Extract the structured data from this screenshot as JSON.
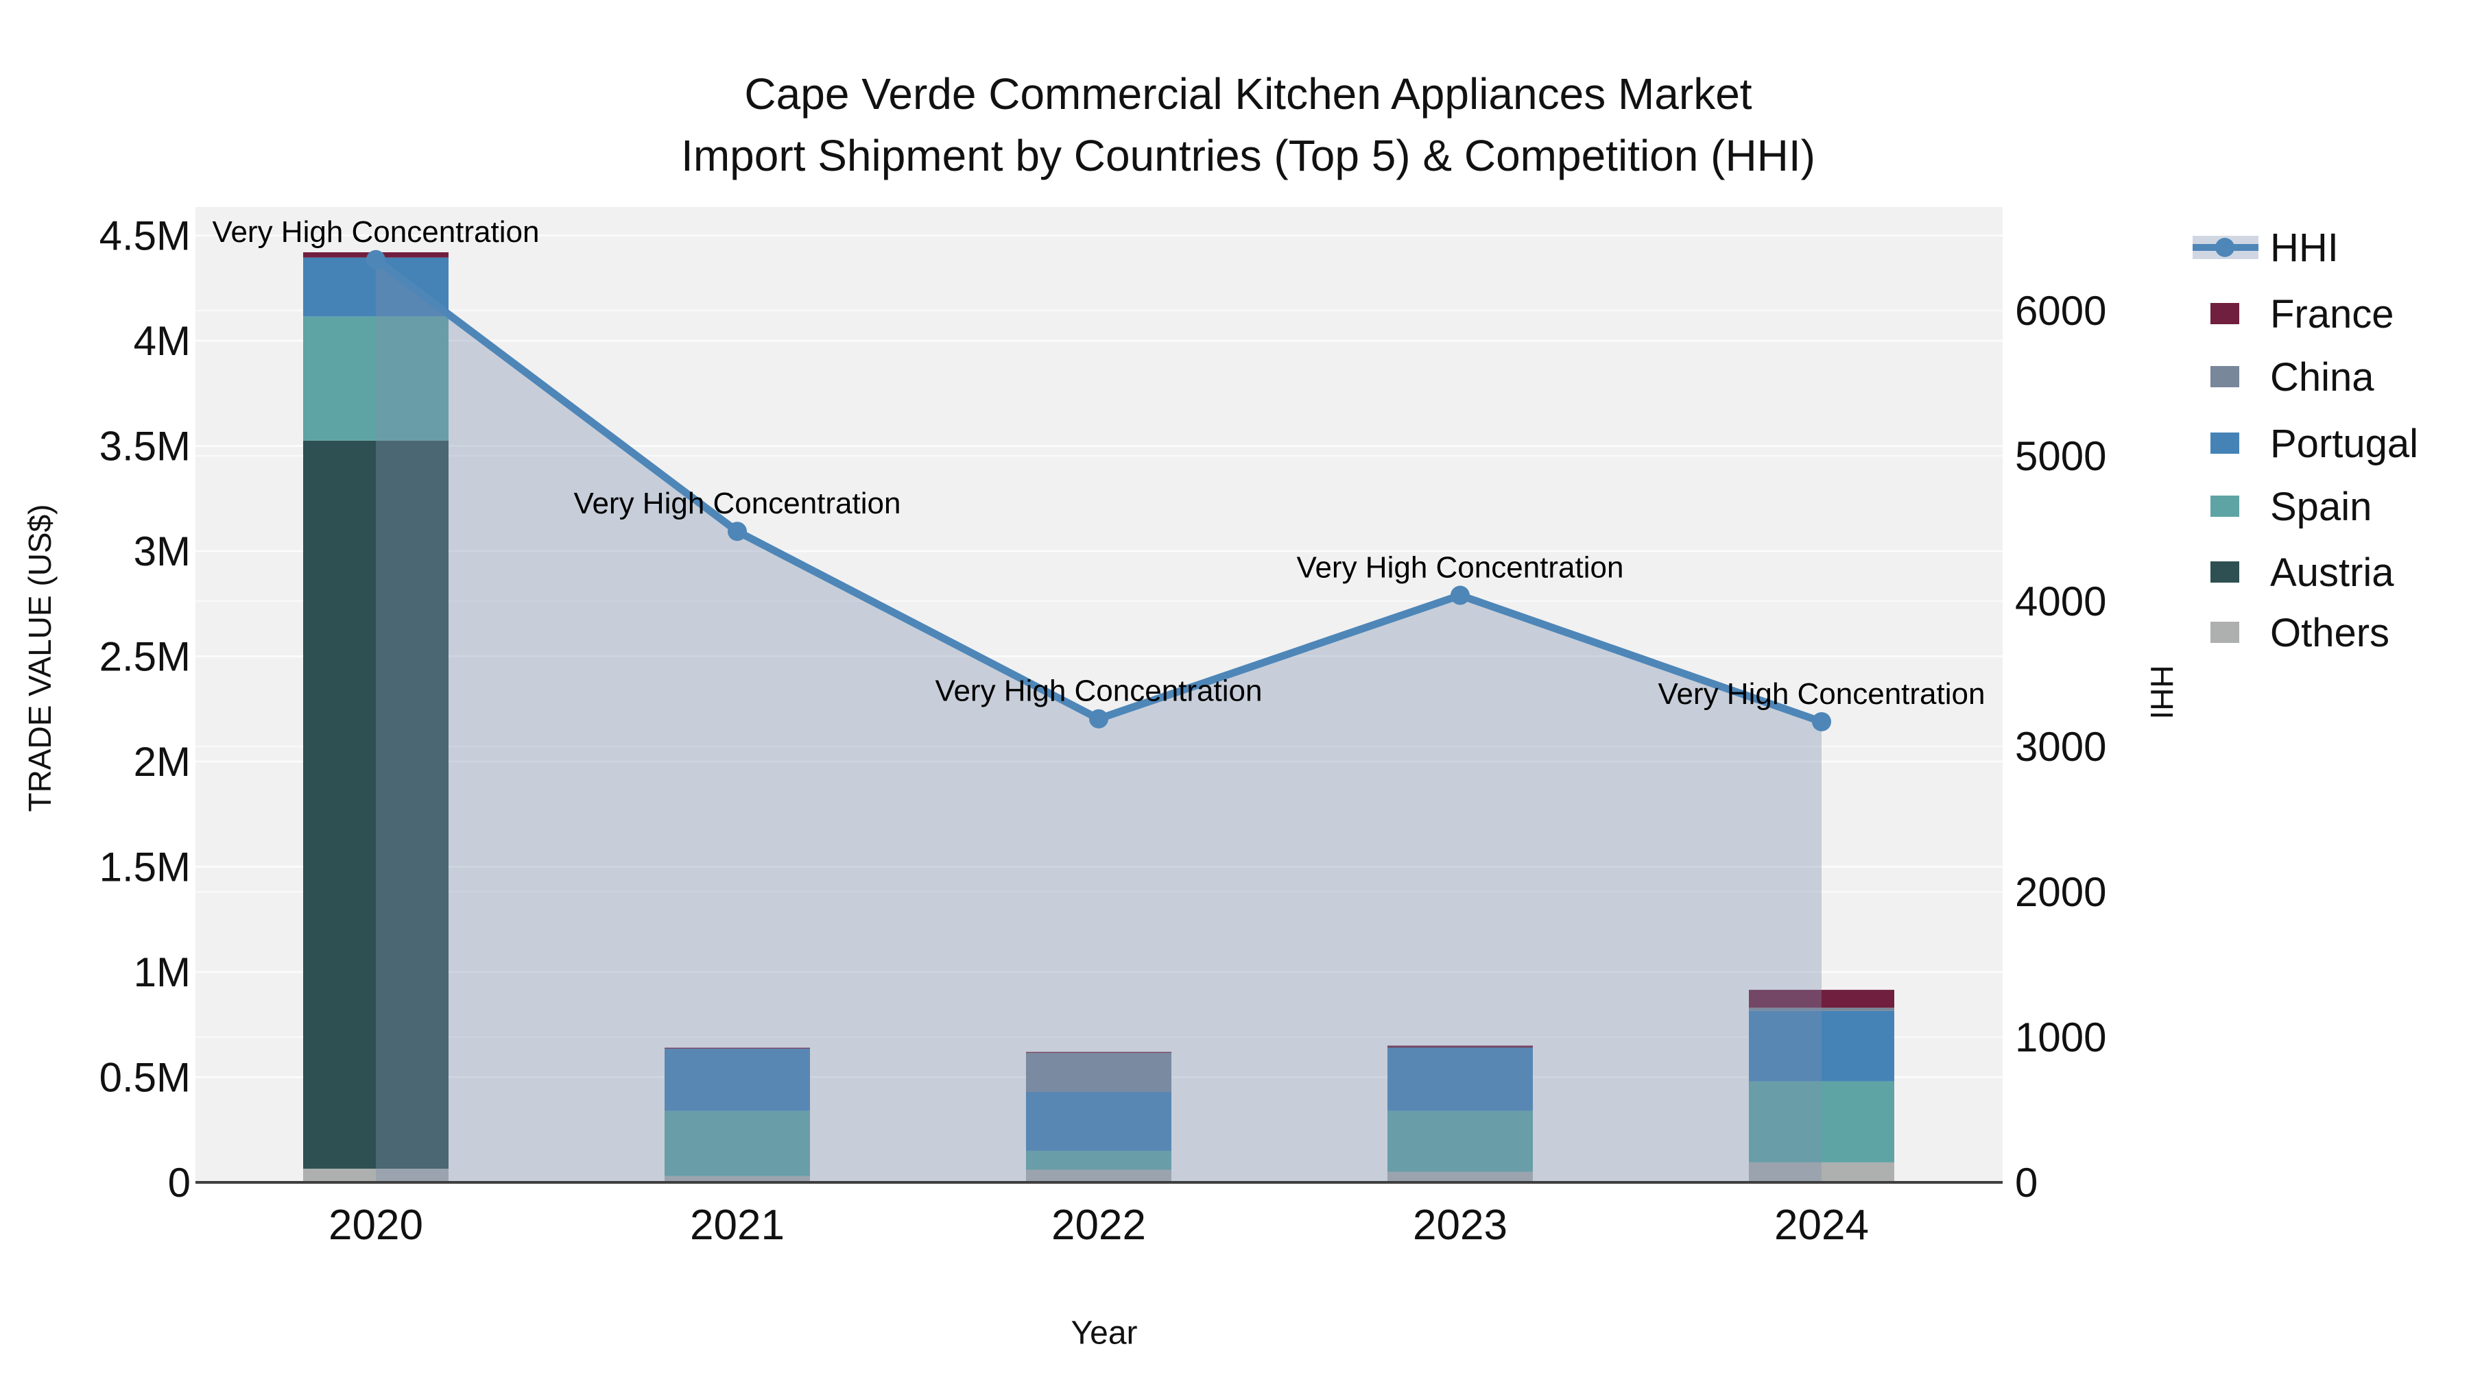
{
  "chart_data": {
    "type": "bar",
    "title": "Cape Verde Commercial Kitchen Appliances Market",
    "subtitle": "Import Shipment by Countries (Top 5) & Competition (HHI)",
    "xlabel": "Year",
    "ylabel_left": "TRADE VALUE (US$)",
    "ylabel_right": "HHI",
    "categories": [
      "2020",
      "2021",
      "2022",
      "2023",
      "2024"
    ],
    "stack_order_note": "bars stacked bottom to top",
    "series": [
      {
        "name": "Others",
        "color": "#adb0ae",
        "values": [
          65000,
          30000,
          60000,
          50000,
          95000
        ]
      },
      {
        "name": "Austria",
        "color": "#2e5052",
        "values": [
          3460000,
          0,
          0,
          0,
          0
        ]
      },
      {
        "name": "Spain",
        "color": "#5fa4a4",
        "values": [
          590000,
          310000,
          90000,
          290000,
          385000
        ]
      },
      {
        "name": "Portugal",
        "color": "#4583b7",
        "values": [
          280000,
          295000,
          280000,
          300000,
          335000
        ]
      },
      {
        "name": "China",
        "color": "#78879a",
        "values": [
          0,
          0,
          185000,
          0,
          15000
        ]
      },
      {
        "name": "France",
        "color": "#701f3e",
        "values": [
          25000,
          5000,
          5000,
          10000,
          85000
        ]
      }
    ],
    "line_series": {
      "name": "HHI",
      "color": "#4e86b8",
      "area_fill": "rgba(125,145,175,0.36)",
      "values": [
        6350,
        4480,
        3190,
        4040,
        3170
      ]
    },
    "annotations": [
      "Very High Concentration",
      "Very High Concentration",
      "Very High Concentration",
      "Very High Concentration",
      "Very High Concentration"
    ],
    "y_left": {
      "min": 0,
      "max": 4500000,
      "tick_values": [
        0,
        500000,
        1000000,
        1500000,
        2000000,
        2500000,
        3000000,
        3500000,
        4000000,
        4500000
      ],
      "tick_labels": [
        "0",
        "0.5M",
        "1M",
        "1.5M",
        "2M",
        "2.5M",
        "3M",
        "3.5M",
        "4M",
        "4.5M"
      ]
    },
    "y_right": {
      "min": 0,
      "max": 6000,
      "tick_values": [
        0,
        1000,
        2000,
        3000,
        4000,
        5000,
        6000
      ],
      "tick_labels": [
        "0",
        "1000",
        "2000",
        "3000",
        "4000",
        "5000",
        "6000"
      ]
    },
    "legend": [
      "HHI",
      "France",
      "China",
      "Portugal",
      "Spain",
      "Austria",
      "Others"
    ],
    "colors": {
      "plot_background": "#f1f1f1",
      "gridline": "#ffffff",
      "axis_line": "#3f3f3f",
      "text": "#111111"
    }
  }
}
